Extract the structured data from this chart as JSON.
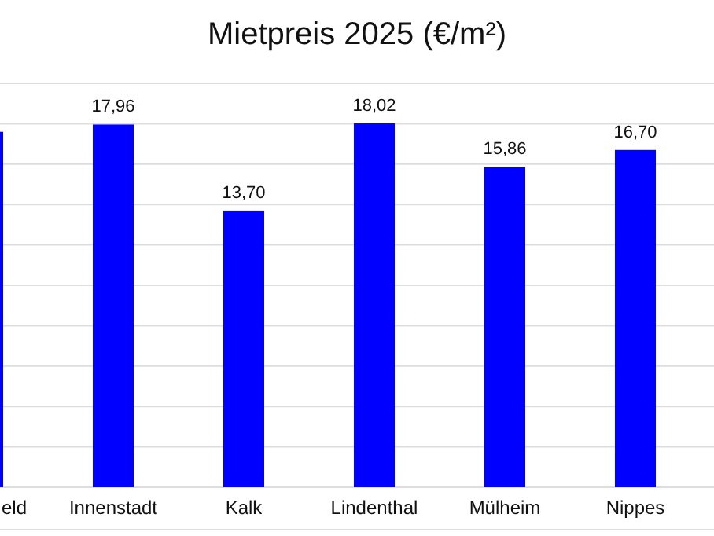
{
  "chart_data": {
    "type": "bar",
    "title": "Mietpreis 2025 (€/m²)",
    "categories": [
      "eld",
      "Innenstadt",
      "Kalk",
      "Lindenthal",
      "Mülheim",
      "Nippes"
    ],
    "values": [
      17.6,
      17.96,
      13.7,
      18.02,
      15.86,
      16.7
    ],
    "value_labels": [
      null,
      "17,96",
      "13,70",
      "18,02",
      "15,86",
      "16,70"
    ],
    "color": "#0000ff",
    "ylim": [
      0,
      20
    ],
    "yticks": [
      {
        "value": 0,
        "label": null
      },
      {
        "value": 2,
        "label": null
      },
      {
        "value": 4,
        "label": null
      },
      {
        "value": 6,
        "label": null
      },
      {
        "value": 8,
        "label": null
      },
      {
        "value": 10,
        "label": null
      },
      {
        "value": 12,
        "label": null
      },
      {
        "value": 14,
        "label": null
      },
      {
        "value": 16,
        "label": null
      },
      {
        "value": 18,
        "label": null
      },
      {
        "value": 20,
        "label": null
      }
    ],
    "grid": "y",
    "tick_labels": "x"
  }
}
